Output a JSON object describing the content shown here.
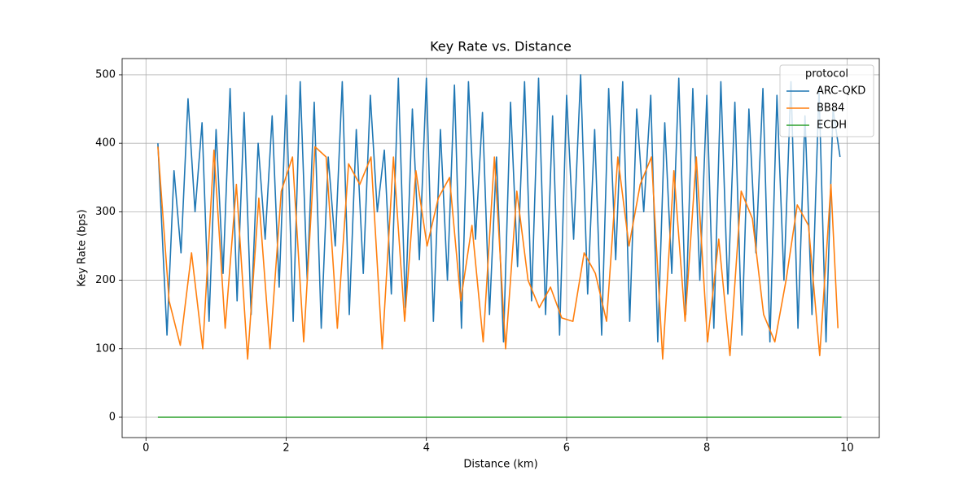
{
  "chart_data": {
    "type": "line",
    "title": "Key Rate vs. Distance",
    "x_label": "Distance (km)",
    "y_label": "Key Rate (bps)",
    "xlim": [
      -0.34,
      10.46
    ],
    "ylim": [
      -29.7,
      523.7
    ],
    "xticks": [
      0,
      2,
      4,
      6,
      8,
      10
    ],
    "yticks": [
      0,
      100,
      200,
      300,
      400,
      500
    ],
    "grid": true,
    "legend_title": "protocol",
    "legend_position": "upper right",
    "series": [
      {
        "name": "ARC-QKD",
        "color": "#1f77b4",
        "x": [
          0.17,
          0.3,
          0.4,
          0.5,
          0.6,
          0.7,
          0.8,
          0.9,
          1.0,
          1.1,
          1.2,
          1.3,
          1.4,
          1.5,
          1.6,
          1.7,
          1.8,
          1.9,
          2.0,
          2.1,
          2.2,
          2.3,
          2.4,
          2.5,
          2.6,
          2.7,
          2.8,
          2.9,
          3.0,
          3.1,
          3.2,
          3.3,
          3.4,
          3.5,
          3.6,
          3.7,
          3.8,
          3.9,
          4.0,
          4.1,
          4.2,
          4.3,
          4.4,
          4.5,
          4.6,
          4.7,
          4.8,
          4.9,
          5.0,
          5.1,
          5.2,
          5.3,
          5.4,
          5.5,
          5.6,
          5.7,
          5.8,
          5.9,
          6.0,
          6.1,
          6.2,
          6.3,
          6.4,
          6.5,
          6.6,
          6.7,
          6.8,
          6.9,
          7.0,
          7.1,
          7.2,
          7.3,
          7.4,
          7.5,
          7.6,
          7.7,
          7.8,
          7.9,
          8.0,
          8.1,
          8.2,
          8.3,
          8.4,
          8.5,
          8.6,
          8.7,
          8.8,
          8.9,
          9.0,
          9.1,
          9.2,
          9.3,
          9.4,
          9.5,
          9.6,
          9.7,
          9.8,
          9.9
        ],
        "values": [
          400,
          120,
          360,
          240,
          465,
          300,
          430,
          140,
          420,
          210,
          480,
          170,
          445,
          150,
          400,
          260,
          440,
          190,
          470,
          140,
          490,
          200,
          460,
          130,
          380,
          250,
          490,
          150,
          420,
          210,
          470,
          300,
          390,
          180,
          495,
          160,
          450,
          230,
          495,
          140,
          420,
          200,
          485,
          130,
          490,
          260,
          445,
          150,
          380,
          110,
          460,
          220,
          490,
          170,
          495,
          150,
          440,
          120,
          470,
          260,
          500,
          180,
          420,
          120,
          480,
          230,
          490,
          140,
          450,
          300,
          470,
          110,
          430,
          210,
          495,
          150,
          480,
          200,
          470,
          130,
          490,
          180,
          460,
          120,
          450,
          240,
          480,
          110,
          470,
          200,
          490,
          130,
          440,
          150,
          480,
          110,
          450,
          380
        ]
      },
      {
        "name": "BB84",
        "color": "#ff7f0e",
        "x": [
          0.17,
          0.33,
          0.49,
          0.65,
          0.81,
          0.97,
          1.13,
          1.29,
          1.45,
          1.61,
          1.77,
          1.93,
          2.09,
          2.25,
          2.41,
          2.57,
          2.73,
          2.89,
          3.05,
          3.21,
          3.37,
          3.53,
          3.69,
          3.85,
          4.01,
          4.17,
          4.33,
          4.49,
          4.65,
          4.81,
          4.97,
          5.13,
          5.29,
          5.45,
          5.61,
          5.77,
          5.93,
          6.09,
          6.25,
          6.41,
          6.57,
          6.73,
          6.89,
          7.05,
          7.21,
          7.37,
          7.53,
          7.69,
          7.85,
          8.01,
          8.17,
          8.33,
          8.49,
          8.65,
          8.81,
          8.97,
          9.13,
          9.29,
          9.45,
          9.61,
          9.77,
          9.87
        ],
        "values": [
          395,
          170,
          105,
          240,
          100,
          390,
          130,
          340,
          85,
          320,
          100,
          330,
          380,
          110,
          395,
          380,
          130,
          370,
          340,
          380,
          100,
          380,
          140,
          360,
          250,
          320,
          350,
          170,
          280,
          110,
          380,
          100,
          330,
          200,
          160,
          190,
          145,
          140,
          240,
          210,
          140,
          380,
          250,
          340,
          380,
          85,
          360,
          140,
          380,
          110,
          260,
          90,
          330,
          290,
          150,
          110,
          200,
          310,
          280,
          90,
          340,
          130
        ]
      },
      {
        "name": "ECDH",
        "color": "#2ca02c",
        "x": [
          0.17,
          9.92
        ],
        "values": [
          0,
          0
        ]
      }
    ]
  }
}
